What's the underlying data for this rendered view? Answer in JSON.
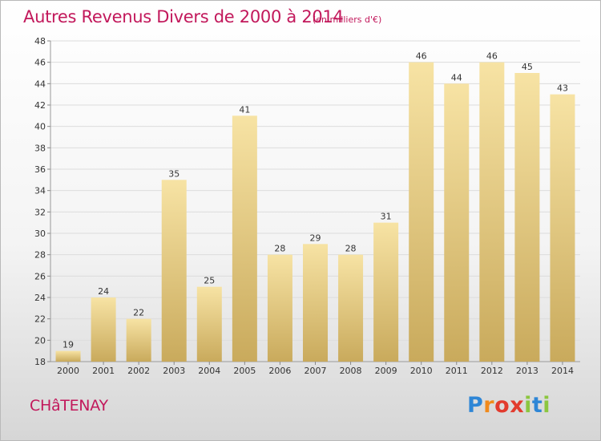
{
  "title": "Autres Revenus Divers de 2000 à 2014",
  "unit": "(en milliers d'€)",
  "place": "CHâTENAY",
  "logo": {
    "letters": [
      "P",
      "r",
      "o",
      "x",
      "i",
      "t",
      "i"
    ],
    "colors": [
      "#2e86d6",
      "#f08a1c",
      "#e23b2e",
      "#e23b2e",
      "#8cc63f",
      "#2e86d6",
      "#8cc63f"
    ]
  },
  "colors": {
    "accent": "#c2185b",
    "bar_light": "#f7e3a4",
    "bar_dark": "#c9aa5c",
    "grid": "#dcdcdc"
  },
  "chart_data": {
    "type": "bar",
    "title": "Autres Revenus Divers de 2000 à 2014",
    "subtitle": "(en milliers d'€)",
    "categories": [
      "2000",
      "2001",
      "2002",
      "2003",
      "2004",
      "2005",
      "2006",
      "2007",
      "2008",
      "2009",
      "2010",
      "2011",
      "2012",
      "2013",
      "2014"
    ],
    "values": [
      19,
      24,
      22,
      35,
      25,
      41,
      28,
      29,
      28,
      31,
      46,
      44,
      46,
      45,
      43
    ],
    "ylim": [
      18,
      48
    ],
    "yticks": [
      18,
      20,
      22,
      24,
      26,
      28,
      30,
      32,
      34,
      36,
      38,
      40,
      42,
      44,
      46,
      48
    ],
    "grid": true,
    "legend": "none"
  }
}
